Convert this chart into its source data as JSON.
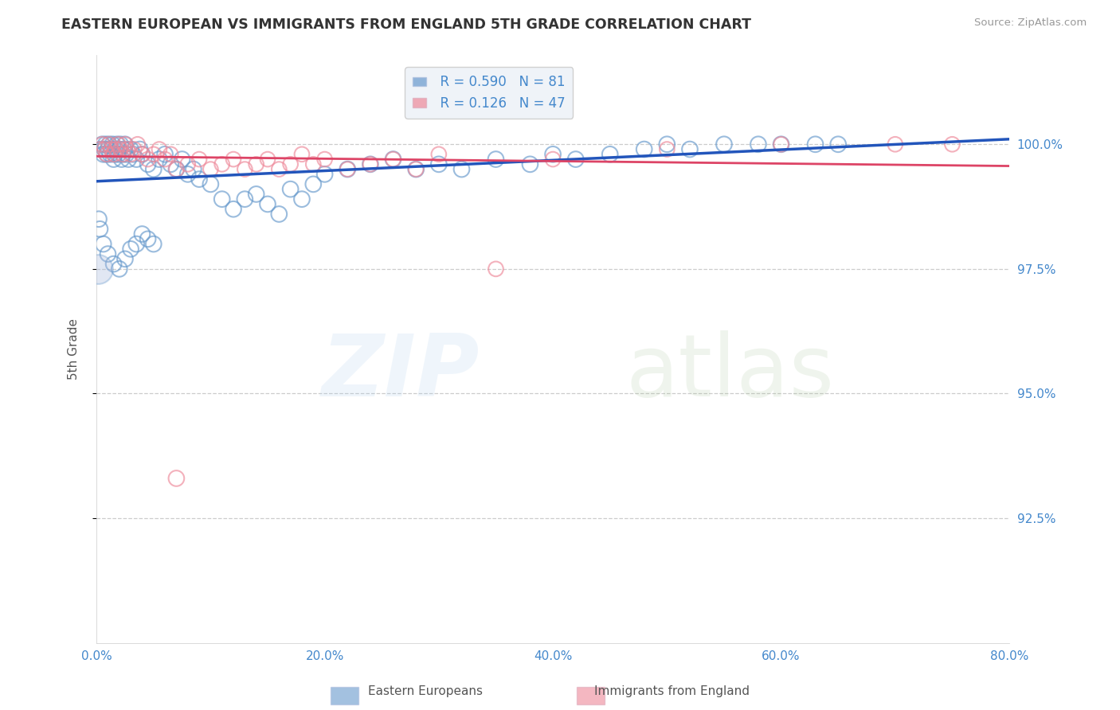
{
  "title": "EASTERN EUROPEAN VS IMMIGRANTS FROM ENGLAND 5TH GRADE CORRELATION CHART",
  "source": "Source: ZipAtlas.com",
  "ylabel": "5th Grade",
  "xlim": [
    0.0,
    80.0
  ],
  "ylim": [
    90.0,
    101.8
  ],
  "yticks": [
    92.5,
    95.0,
    97.5,
    100.0
  ],
  "xticks": [
    0.0,
    20.0,
    40.0,
    60.0,
    80.0
  ],
  "blue_R": 0.59,
  "blue_N": 81,
  "pink_R": 0.126,
  "pink_N": 47,
  "blue_color": "#6699CC",
  "pink_color": "#EE8899",
  "blue_line_color": "#2255BB",
  "pink_line_color": "#DD4466",
  "background_color": "#FFFFFF",
  "grid_color": "#CCCCCC",
  "title_color": "#333333",
  "axis_label_color": "#555555",
  "tick_label_color": "#4488CC",
  "legend_box_color": "#EEF2F8",
  "blue_scatter_x": [
    0.4,
    0.5,
    0.6,
    0.7,
    0.8,
    0.9,
    1.0,
    1.1,
    1.2,
    1.3,
    1.4,
    1.5,
    1.6,
    1.7,
    1.8,
    1.9,
    2.0,
    2.1,
    2.2,
    2.3,
    2.4,
    2.5,
    2.6,
    2.8,
    3.0,
    3.2,
    3.5,
    3.8,
    4.0,
    4.5,
    5.0,
    5.5,
    6.0,
    6.5,
    7.0,
    7.5,
    8.0,
    8.5,
    9.0,
    10.0,
    11.0,
    12.0,
    13.0,
    14.0,
    15.0,
    16.0,
    17.0,
    18.0,
    19.0,
    20.0,
    22.0,
    24.0,
    26.0,
    28.0,
    30.0,
    32.0,
    35.0,
    38.0,
    40.0,
    42.0,
    45.0,
    48.0,
    50.0,
    52.0,
    55.0,
    58.0,
    60.0,
    63.0,
    65.0,
    0.2,
    0.3,
    0.6,
    1.0,
    1.5,
    2.0,
    2.5,
    3.0,
    3.5,
    4.0,
    4.5,
    5.0
  ],
  "blue_scatter_y": [
    99.9,
    100.0,
    99.8,
    99.9,
    100.0,
    99.8,
    99.9,
    100.0,
    99.8,
    99.9,
    100.0,
    99.7,
    99.8,
    99.9,
    100.0,
    99.8,
    99.9,
    100.0,
    99.7,
    99.8,
    99.9,
    100.0,
    99.8,
    99.7,
    99.9,
    99.8,
    99.7,
    99.9,
    99.8,
    99.6,
    99.5,
    99.7,
    99.8,
    99.6,
    99.5,
    99.7,
    99.4,
    99.5,
    99.3,
    99.2,
    98.9,
    98.7,
    98.9,
    99.0,
    98.8,
    98.6,
    99.1,
    98.9,
    99.2,
    99.4,
    99.5,
    99.6,
    99.7,
    99.5,
    99.6,
    99.5,
    99.7,
    99.6,
    99.8,
    99.7,
    99.8,
    99.9,
    100.0,
    99.9,
    100.0,
    100.0,
    100.0,
    100.0,
    100.0,
    98.5,
    98.3,
    98.0,
    97.8,
    97.6,
    97.5,
    97.7,
    97.9,
    98.0,
    98.2,
    98.1,
    98.0
  ],
  "pink_scatter_x": [
    0.3,
    0.5,
    0.7,
    0.9,
    1.1,
    1.3,
    1.5,
    1.7,
    1.9,
    2.1,
    2.3,
    2.5,
    2.7,
    3.0,
    3.3,
    3.6,
    4.0,
    4.5,
    5.0,
    5.5,
    6.0,
    6.5,
    7.0,
    8.0,
    9.0,
    10.0,
    11.0,
    12.0,
    13.0,
    14.0,
    15.0,
    16.0,
    17.0,
    18.0,
    19.0,
    20.0,
    22.0,
    24.0,
    26.0,
    28.0,
    30.0,
    35.0,
    40.0,
    50.0,
    60.0,
    70.0,
    75.0
  ],
  "pink_scatter_y": [
    99.9,
    100.0,
    99.9,
    99.8,
    100.0,
    99.9,
    99.8,
    99.9,
    100.0,
    99.9,
    99.8,
    100.0,
    99.9,
    99.8,
    99.9,
    100.0,
    99.8,
    99.7,
    99.8,
    99.9,
    99.7,
    99.8,
    99.5,
    99.6,
    99.7,
    99.5,
    99.6,
    99.7,
    99.5,
    99.6,
    99.7,
    99.5,
    99.6,
    99.8,
    99.6,
    99.7,
    99.5,
    99.6,
    99.7,
    99.5,
    99.8,
    97.5,
    99.7,
    99.9,
    100.0,
    100.0,
    100.0
  ],
  "outlier_blue_x": [
    0.15
  ],
  "outlier_blue_y": [
    97.5
  ],
  "outlier_blue_size": 700,
  "outlier_pink_x": [
    7.0
  ],
  "outlier_pink_y": [
    93.3
  ],
  "outlier_pink_size": 200
}
